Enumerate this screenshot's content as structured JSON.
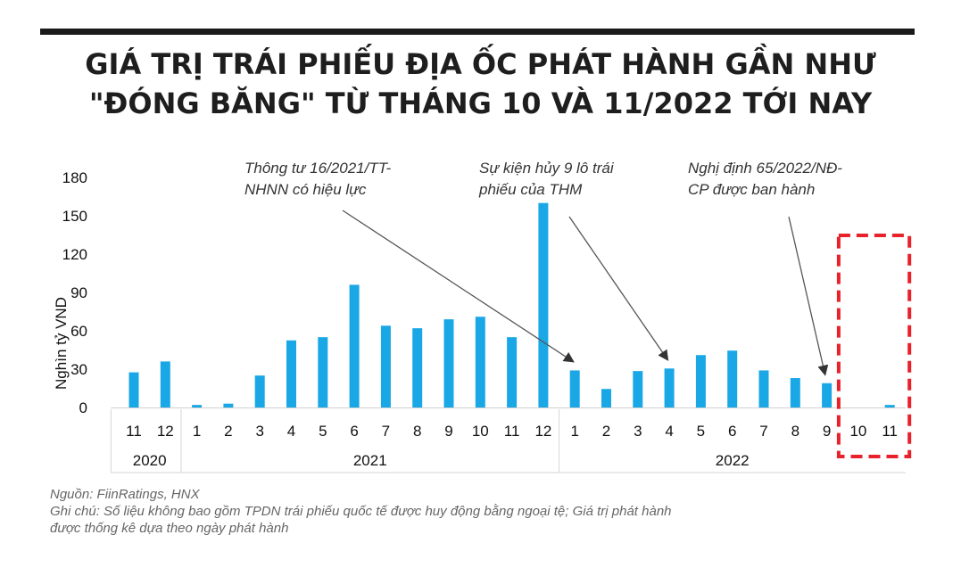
{
  "title_line1": "GIÁ TRỊ TRÁI PHIẾU ĐỊA ỐC PHÁT HÀNH GẦN NHƯ",
  "title_line2": "\"ĐÓNG BĂNG\" TỪ THÁNG 10 VÀ 11/2022 TỚI NAY",
  "source": "Nguồn: FiinRatings, HNX",
  "note_line1": "Ghi chú: Số liệu không bao gồm TPDN trái phiếu quốc tế được huy động bằng ngoại tệ; Giá trị phát hành",
  "note_line2": "được thống kê dựa theo ngày phát hành",
  "colors": {
    "bar": "#1aa7e6",
    "highlight_box": "#e8212a",
    "arrow": "#555555",
    "title": "#1e1e1e"
  },
  "chart_data": {
    "type": "bar",
    "ylabel": "Nghìn tỷ VND",
    "ylim": [
      0,
      180
    ],
    "yticks": [
      0,
      30,
      60,
      90,
      120,
      150,
      180
    ],
    "categories": [
      "11",
      "12",
      "1",
      "2",
      "3",
      "4",
      "5",
      "6",
      "7",
      "8",
      "9",
      "10",
      "11",
      "12",
      "1",
      "2",
      "3",
      "4",
      "5",
      "6",
      "7",
      "8",
      "9",
      "10",
      "11"
    ],
    "values": [
      27.5,
      36,
      2,
      3,
      25,
      52.5,
      55,
      96,
      64,
      62,
      69,
      71,
      55,
      160,
      29,
      14.5,
      28.5,
      30.5,
      41,
      44.5,
      29,
      23,
      19,
      0,
      2
    ],
    "year_groups": [
      {
        "label": "2020",
        "start": 0,
        "end": 1
      },
      {
        "label": "2021",
        "start": 2,
        "end": 13
      },
      {
        "label": "2022",
        "start": 14,
        "end": 24
      }
    ],
    "highlight": {
      "start": 23,
      "end": 24
    },
    "annotations": [
      {
        "lines": [
          "Thông tư 16/2021/TT-",
          "NHNN có hiệu lực"
        ],
        "target_index": 14
      },
      {
        "lines": [
          "Sự kiện hủy 9 lô trái",
          "phiếu của THM"
        ],
        "target_index": 17
      },
      {
        "lines": [
          "Nghị định 65/2022/NĐ-",
          "CP được ban hành"
        ],
        "target_index": 22
      }
    ],
    "grid": false,
    "legend": "none"
  }
}
